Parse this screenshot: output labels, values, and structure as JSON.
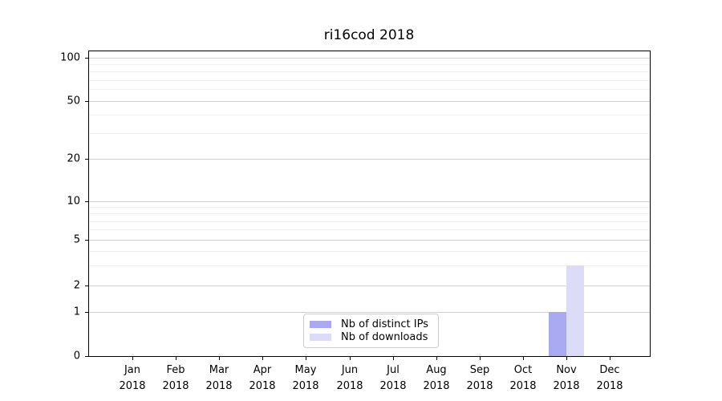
{
  "chart_data": {
    "type": "bar",
    "title": "ri16cod 2018",
    "categories": [
      "Jan",
      "Feb",
      "Mar",
      "Apr",
      "May",
      "Jun",
      "Jul",
      "Aug",
      "Sep",
      "Oct",
      "Nov",
      "Dec"
    ],
    "year_label": "2018",
    "series": [
      {
        "name": "Nb of distinct IPs",
        "color": "#a9a9f1",
        "values": [
          0,
          0,
          0,
          0,
          0,
          0,
          0,
          0,
          0,
          0,
          1,
          0
        ]
      },
      {
        "name": "Nb of downloads",
        "color": "#dcdcf8",
        "values": [
          0,
          0,
          0,
          0,
          0,
          0,
          0,
          0,
          0,
          0,
          3,
          0
        ]
      }
    ],
    "yticks": [
      0,
      1,
      2,
      5,
      10,
      20,
      50,
      100
    ],
    "minor_yticks": [
      3,
      4,
      6,
      7,
      8,
      9,
      30,
      40,
      60,
      70,
      80,
      90
    ],
    "ylim": [
      0,
      112
    ],
    "xlabel": "",
    "ylabel": "",
    "grid": "horizontal (major and faint minor)",
    "legend_position": "lower center inside plot",
    "scale": "log above 1, linear segment 0-1"
  },
  "colors": {
    "background": "#ffffff",
    "axis": "#000000",
    "major_grid": "#d2d2d2",
    "minor_grid": "#f0f0f0",
    "legend_border": "#cccccc",
    "bar_distinct_ips": "#a9a9f1",
    "bar_downloads": "#dcdcf8"
  }
}
